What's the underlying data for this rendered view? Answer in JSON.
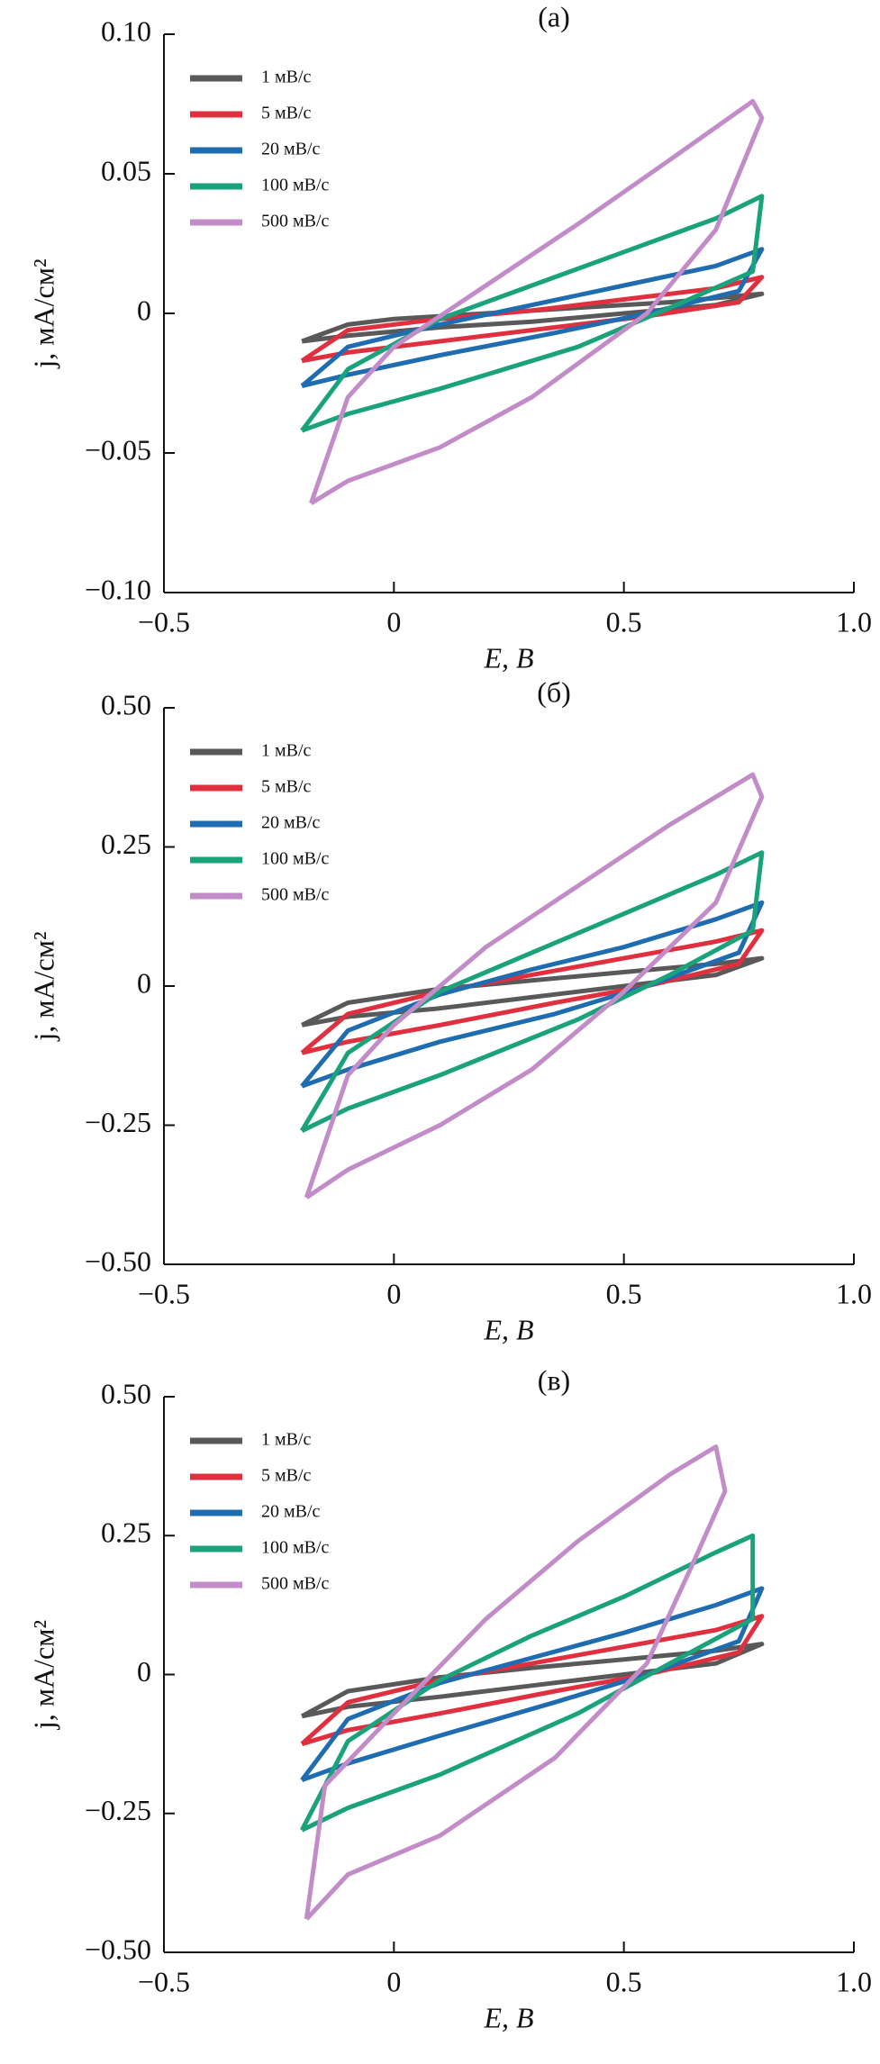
{
  "chart_data": [
    {
      "type": "line",
      "title": "(а)",
      "xlabel": "E, В",
      "ylabel": "j, мА/см²",
      "xlim": [
        -0.5,
        1.0
      ],
      "xticks": [
        {
          "value": -0.5,
          "label": "−0.5"
        },
        0,
        0.5,
        {
          "value": 1.0,
          "label": "1.0"
        }
      ],
      "ylim": [
        -0.1,
        0.1
      ],
      "yticks": [
        {
          "value": -0.1,
          "label": "−0.10"
        },
        {
          "value": -0.05,
          "label": "−0.05"
        },
        0,
        0.05,
        {
          "value": 0.1,
          "label": "0.10"
        }
      ],
      "legend": "upper left",
      "series": [
        {
          "name": "1 мВ/с",
          "color": "#595959",
          "x": [
            -0.2,
            -0.1,
            0,
            0.2,
            0.4,
            0.6,
            0.8,
            0.7,
            0.5,
            0.3,
            0.1,
            -0.1,
            -0.2
          ],
          "values": [
            -0.01,
            -0.004,
            -0.002,
            0.0,
            0.002,
            0.004,
            0.007,
            0.003,
            0.0,
            -0.003,
            -0.005,
            -0.008,
            -0.01
          ]
        },
        {
          "name": "5 мВ/с",
          "color": "#e0303f",
          "x": [
            -0.2,
            -0.1,
            0.1,
            0.3,
            0.5,
            0.7,
            0.8,
            0.75,
            0.55,
            0.35,
            0.1,
            -0.1,
            -0.2
          ],
          "values": [
            -0.017,
            -0.006,
            -0.002,
            0.001,
            0.005,
            0.009,
            0.013,
            0.004,
            -0.001,
            -0.005,
            -0.01,
            -0.014,
            -0.017
          ]
        },
        {
          "name": "20 мВ/с",
          "color": "#1f6cb0",
          "x": [
            -0.2,
            -0.1,
            0.1,
            0.3,
            0.5,
            0.7,
            0.8,
            0.75,
            0.55,
            0.35,
            0.1,
            -0.1,
            -0.2
          ],
          "values": [
            -0.026,
            -0.012,
            -0.004,
            0.003,
            0.01,
            0.017,
            0.023,
            0.008,
            0.0,
            -0.007,
            -0.015,
            -0.022,
            -0.026
          ]
        },
        {
          "name": "100 мВ/с",
          "color": "#1aa37a",
          "x": [
            -0.2,
            -0.1,
            0.1,
            0.3,
            0.5,
            0.7,
            0.8,
            0.78,
            0.6,
            0.4,
            0.1,
            -0.1,
            -0.2
          ],
          "values": [
            -0.042,
            -0.02,
            -0.002,
            0.01,
            0.022,
            0.034,
            0.042,
            0.015,
            0.002,
            -0.012,
            -0.027,
            -0.036,
            -0.042
          ]
        },
        {
          "name": "500 мВ/с",
          "color": "#c28cc8",
          "x": [
            -0.18,
            -0.1,
            0.0,
            0.2,
            0.4,
            0.6,
            0.78,
            0.8,
            0.7,
            0.55,
            0.3,
            0.1,
            -0.1,
            -0.18
          ],
          "values": [
            -0.068,
            -0.03,
            -0.012,
            0.01,
            0.032,
            0.055,
            0.076,
            0.07,
            0.03,
            0.0,
            -0.03,
            -0.048,
            -0.06,
            -0.068
          ]
        }
      ]
    },
    {
      "type": "line",
      "title": "(б)",
      "xlabel": "E, В",
      "ylabel": "j, мА/см²",
      "xlim": [
        -0.5,
        1.0
      ],
      "xticks": [
        {
          "value": -0.5,
          "label": "−0.5"
        },
        0,
        0.5,
        {
          "value": 1.0,
          "label": "1.0"
        }
      ],
      "ylim": [
        -0.5,
        0.5
      ],
      "yticks": [
        {
          "value": -0.5,
          "label": "−0.50"
        },
        {
          "value": -0.25,
          "label": "−0.25"
        },
        0,
        0.25,
        {
          "value": 0.5,
          "label": "0.50"
        }
      ],
      "legend": "upper left",
      "series": [
        {
          "name": "1 мВ/с",
          "color": "#595959",
          "x": [
            -0.2,
            -0.1,
            0.1,
            0.3,
            0.5,
            0.7,
            0.8,
            0.7,
            0.5,
            0.3,
            0.1,
            -0.1,
            -0.2
          ],
          "values": [
            -0.07,
            -0.03,
            -0.005,
            0.01,
            0.025,
            0.04,
            0.05,
            0.02,
            0.0,
            -0.02,
            -0.04,
            -0.055,
            -0.07
          ]
        },
        {
          "name": "5 мВ/с",
          "color": "#e0303f",
          "x": [
            -0.2,
            -0.1,
            0.1,
            0.3,
            0.5,
            0.7,
            0.8,
            0.75,
            0.55,
            0.35,
            0.1,
            -0.1,
            -0.2
          ],
          "values": [
            -0.12,
            -0.05,
            -0.01,
            0.02,
            0.05,
            0.08,
            0.1,
            0.04,
            0.0,
            -0.03,
            -0.07,
            -0.1,
            -0.12
          ]
        },
        {
          "name": "20 мВ/с",
          "color": "#1f6cb0",
          "x": [
            -0.2,
            -0.1,
            0.1,
            0.3,
            0.5,
            0.7,
            0.8,
            0.75,
            0.55,
            0.35,
            0.1,
            -0.1,
            -0.2
          ],
          "values": [
            -0.18,
            -0.08,
            -0.015,
            0.03,
            0.07,
            0.12,
            0.15,
            0.06,
            0.0,
            -0.05,
            -0.1,
            -0.15,
            -0.18
          ]
        },
        {
          "name": "100 мВ/с",
          "color": "#1aa37a",
          "x": [
            -0.2,
            -0.1,
            0.1,
            0.3,
            0.5,
            0.7,
            0.8,
            0.78,
            0.6,
            0.4,
            0.1,
            -0.1,
            -0.2
          ],
          "values": [
            -0.26,
            -0.12,
            -0.01,
            0.06,
            0.13,
            0.2,
            0.24,
            0.1,
            0.02,
            -0.06,
            -0.16,
            -0.22,
            -0.26
          ]
        },
        {
          "name": "500 мВ/с",
          "color": "#c28cc8",
          "x": [
            -0.19,
            -0.1,
            0.0,
            0.2,
            0.4,
            0.6,
            0.78,
            0.8,
            0.7,
            0.5,
            0.3,
            0.1,
            -0.1,
            -0.19
          ],
          "values": [
            -0.38,
            -0.16,
            -0.07,
            0.07,
            0.18,
            0.29,
            0.38,
            0.34,
            0.15,
            -0.01,
            -0.15,
            -0.25,
            -0.33,
            -0.38
          ]
        }
      ]
    },
    {
      "type": "line",
      "title": "(в)",
      "xlabel": "E, В",
      "ylabel": "j, мА/см²",
      "xlim": [
        -0.5,
        1.0
      ],
      "xticks": [
        {
          "value": -0.5,
          "label": "−0.5"
        },
        0,
        0.5,
        {
          "value": 1.0,
          "label": "1.0"
        }
      ],
      "ylim": [
        -0.5,
        0.5
      ],
      "yticks": [
        {
          "value": -0.5,
          "label": "−0.50"
        },
        {
          "value": -0.25,
          "label": "−0.25"
        },
        0,
        0.25,
        {
          "value": 0.5,
          "label": "0.50"
        }
      ],
      "legend": "upper left",
      "series": [
        {
          "name": "1 мВ/с",
          "color": "#595959",
          "x": [
            -0.2,
            -0.1,
            0.1,
            0.3,
            0.5,
            0.7,
            0.8,
            0.7,
            0.5,
            0.3,
            0.1,
            -0.1,
            -0.2
          ],
          "values": [
            -0.075,
            -0.03,
            -0.005,
            0.012,
            0.027,
            0.043,
            0.055,
            0.02,
            0.0,
            -0.02,
            -0.04,
            -0.058,
            -0.075
          ]
        },
        {
          "name": "5 мВ/с",
          "color": "#e0303f",
          "x": [
            -0.2,
            -0.1,
            0.1,
            0.3,
            0.5,
            0.7,
            0.8,
            0.75,
            0.55,
            0.35,
            0.1,
            -0.1,
            -0.2
          ],
          "values": [
            -0.125,
            -0.05,
            -0.01,
            0.02,
            0.05,
            0.08,
            0.105,
            0.04,
            0.0,
            -0.03,
            -0.07,
            -0.1,
            -0.125
          ]
        },
        {
          "name": "20 мВ/с",
          "color": "#1f6cb0",
          "x": [
            -0.2,
            -0.1,
            0.1,
            0.3,
            0.5,
            0.7,
            0.8,
            0.75,
            0.55,
            0.35,
            0.1,
            -0.1,
            -0.2
          ],
          "values": [
            -0.19,
            -0.08,
            -0.015,
            0.03,
            0.075,
            0.125,
            0.155,
            0.06,
            0.0,
            -0.05,
            -0.11,
            -0.16,
            -0.19
          ]
        },
        {
          "name": "100 мВ/с",
          "color": "#1aa37a",
          "x": [
            -0.2,
            -0.1,
            0.1,
            0.3,
            0.5,
            0.7,
            0.78,
            0.78,
            0.6,
            0.4,
            0.1,
            -0.1,
            -0.2
          ],
          "values": [
            -0.28,
            -0.12,
            -0.01,
            0.07,
            0.14,
            0.22,
            0.25,
            0.1,
            0.02,
            -0.07,
            -0.18,
            -0.24,
            -0.28
          ]
        },
        {
          "name": "500 мВ/с",
          "color": "#c28cc8",
          "x": [
            -0.19,
            -0.15,
            0.0,
            0.2,
            0.4,
            0.6,
            0.7,
            0.72,
            0.65,
            0.55,
            0.35,
            0.1,
            -0.1,
            -0.19
          ],
          "values": [
            -0.44,
            -0.2,
            -0.07,
            0.1,
            0.24,
            0.36,
            0.41,
            0.33,
            0.2,
            0.02,
            -0.15,
            -0.29,
            -0.36,
            -0.44
          ]
        }
      ]
    }
  ]
}
